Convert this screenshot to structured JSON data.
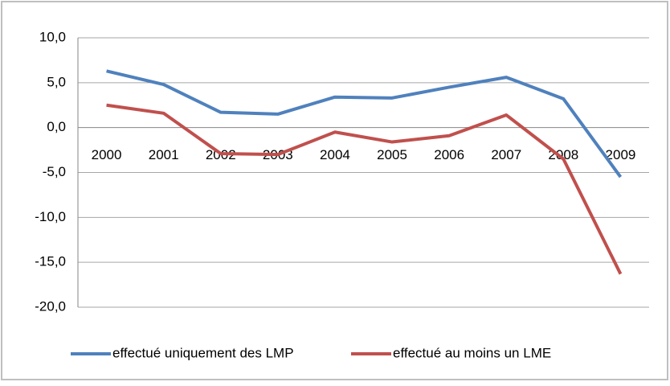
{
  "chart_data": {
    "type": "line",
    "categories": [
      "2000",
      "2001",
      "2002",
      "2003",
      "2004",
      "2005",
      "2006",
      "2007",
      "2008",
      "2009"
    ],
    "series": [
      {
        "name": "effectué uniquement des LMP",
        "color": "#4f81bd",
        "values": [
          6.3,
          4.8,
          1.7,
          1.5,
          3.4,
          3.3,
          4.5,
          5.6,
          3.2,
          -5.5
        ]
      },
      {
        "name": "effectué au moins un LME",
        "color": "#c0504d",
        "values": [
          2.5,
          1.6,
          -2.9,
          -3.0,
          -0.5,
          -1.6,
          -0.9,
          1.4,
          -3.5,
          -16.3
        ]
      }
    ],
    "ylim": [
      -20,
      10
    ],
    "yticks": [
      {
        "value": -20,
        "label": "-20,0"
      },
      {
        "value": -15,
        "label": "-15,0"
      },
      {
        "value": -10,
        "label": "-10,0"
      },
      {
        "value": -5,
        "label": "-5,0"
      },
      {
        "value": 0,
        "label": "0,0"
      },
      {
        "value": 5,
        "label": "5,0"
      },
      {
        "value": 10,
        "label": "10,0"
      }
    ],
    "grid": true,
    "legend": "bottom"
  }
}
